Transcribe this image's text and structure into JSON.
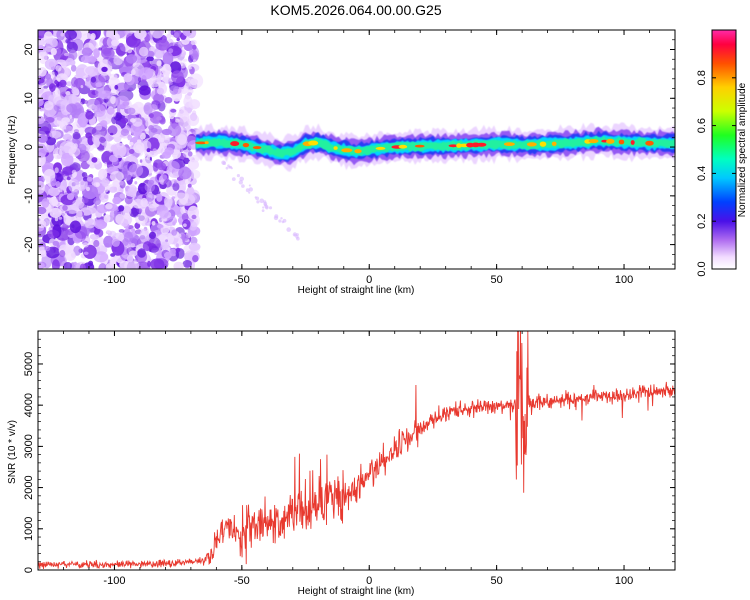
{
  "chart_data": [
    {
      "type": "heatmap",
      "title": "KOM5.2026.064.00.00.G25",
      "xlabel": "Height of straight line (km)",
      "ylabel": "Frequency (Hz)",
      "xlim": [
        -130,
        120
      ],
      "ylim": [
        -25,
        24
      ],
      "xticks": [
        -100,
        -50,
        0,
        50,
        100
      ],
      "yticks": [
        -20,
        -10,
        0,
        10,
        20
      ],
      "colorbar": {
        "label": "Normalized spectral amplitude",
        "range": [
          0.0,
          1.0
        ],
        "ticks": [
          0.0,
          0.2,
          0.4,
          0.6,
          0.8
        ]
      },
      "ridge": {
        "description_x": [
          -68,
          -60,
          -50,
          -45,
          -40,
          -35,
          -30,
          -25,
          -20,
          -15,
          -10,
          -5,
          0,
          10,
          20,
          30,
          40,
          50,
          55,
          60,
          65,
          70,
          80,
          90,
          100,
          110,
          120
        ],
        "freq_y": [
          0.8,
          1.0,
          0.6,
          0.0,
          -0.6,
          -1.3,
          -1.0,
          0.6,
          1.0,
          0.0,
          -0.6,
          -0.9,
          -0.5,
          0.0,
          0.2,
          0.2,
          0.4,
          0.6,
          0.6,
          0.4,
          0.6,
          0.6,
          0.9,
          1.3,
          1.0,
          0.8,
          0.8
        ]
      }
    },
    {
      "type": "line",
      "xlabel": "Height of straight line (km)",
      "ylabel": "SNR (10 * v/v)",
      "xlim": [
        -130,
        120
      ],
      "ylim": [
        0,
        5800
      ],
      "xticks": [
        -100,
        -50,
        0,
        50,
        100
      ],
      "yticks": [
        0,
        1000,
        2000,
        3000,
        4000,
        5000
      ],
      "series": [
        {
          "name": "SNR",
          "color": "#e8392f",
          "x": [
            -130,
            -110,
            -90,
            -75,
            -65,
            -62,
            -58,
            -55,
            -50,
            -45,
            -40,
            -35,
            -30,
            -25,
            -20,
            -15,
            -10,
            -5,
            0,
            5,
            10,
            15,
            20,
            25,
            30,
            40,
            50,
            55,
            58,
            60,
            62,
            65,
            70,
            80,
            90,
            100,
            110,
            120
          ],
          "y": [
            130,
            130,
            150,
            170,
            230,
            450,
            900,
            1000,
            800,
            1100,
            1050,
            1200,
            1300,
            1350,
            1500,
            1700,
            1800,
            2000,
            2300,
            2600,
            2900,
            3200,
            3450,
            3650,
            3800,
            3950,
            4000,
            4000,
            4100,
            4000,
            4050,
            4050,
            4100,
            4150,
            4200,
            4250,
            4300,
            4350
          ]
        }
      ]
    }
  ]
}
